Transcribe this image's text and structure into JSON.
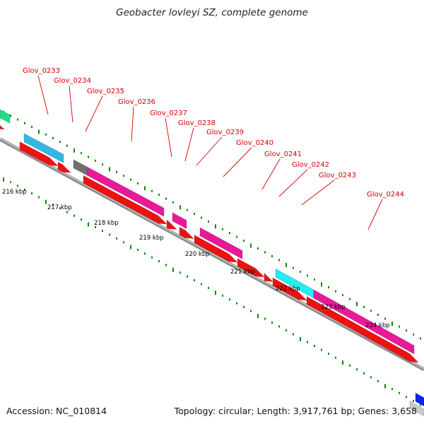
{
  "title": "Geobacter lovleyi SZ, complete genome",
  "footer": {
    "accession": "Accession: NC_010814",
    "summary": "Topology: circular; Length: 3,917,761 bp; Genes: 3,658"
  },
  "colors": {
    "cds_forward": "#ee1111",
    "cds_reverse": "#ee1111",
    "rrna": "#e81a9a",
    "trna_blue": "#33b8e6",
    "trna_cyan": "#22eef0",
    "gray": "#707070",
    "dots": "#0a8a0a",
    "label": "#d40000",
    "blue": "#1020ee",
    "green": "#22dd88"
  },
  "ruler": {
    "ticks": [
      "216 kbp",
      "217 kbp",
      "218 kbp",
      "219 kbp",
      "220 kbp",
      "221 kbp",
      "222 kbp",
      "223 kbp",
      "224 kbp"
    ]
  },
  "genes": [
    "Glov_0233",
    "Glov_0234",
    "Glov_0235",
    "Glov_0236",
    "Glov_0237",
    "Glov_0238",
    "Glov_0239",
    "Glov_0240",
    "Glov_0241",
    "Glov_0242",
    "Glov_0243",
    "Glov_0244"
  ]
}
